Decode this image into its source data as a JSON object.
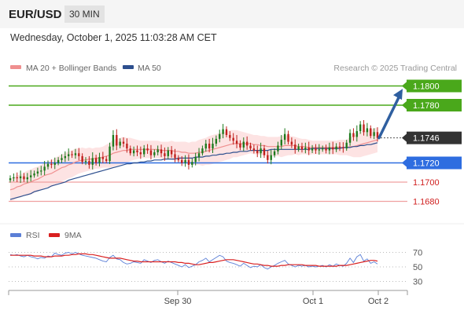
{
  "header": {
    "symbol": "EUR/USD",
    "timeframe": "30 MIN"
  },
  "datetime": "Wednesday, October 1, 2025 11:03:28 AM CET",
  "legend": {
    "ma20": "MA 20 + Bollinger Bands",
    "ma50": "MA 50",
    "credit": "Research © 2025 Trading Central",
    "rsi": "RSI",
    "rsi_ma": "9MA"
  },
  "colors": {
    "bull": "#1d7a1d",
    "bear": "#c0201d",
    "ma20": "#ef8f8f",
    "ma50": "#2d4f8e",
    "bollinger_fill": "#fde3e3",
    "resistance": "#4aa81b",
    "support": "#2e6de0",
    "target_support": "#f0a0a0",
    "arrow": "#2f5fa0",
    "current_price_bg": "#333333",
    "rsi": "#5b7fd6",
    "rsi_ma": "#d92020"
  },
  "chart_data": [
    {
      "type": "candlestick",
      "title": "",
      "ylim": [
        1.165,
        1.182
      ],
      "x_ticks": [
        "Sep 30",
        "Oct 1",
        "Oct 2"
      ],
      "series": [
        {
          "name": "MA 20 + Bollinger Bands"
        },
        {
          "name": "MA 50"
        }
      ],
      "levels": [
        {
          "label": "1.1800",
          "value": 1.18,
          "kind": "resistance"
        },
        {
          "label": "1.1780",
          "value": 1.178,
          "kind": "resistance"
        },
        {
          "label": "1.1746",
          "value": 1.1746,
          "kind": "current"
        },
        {
          "label": "1.1720",
          "value": 1.172,
          "kind": "support"
        },
        {
          "label": "1.1700",
          "value": 1.17,
          "kind": "target"
        },
        {
          "label": "1.1680",
          "value": 1.168,
          "kind": "target"
        }
      ],
      "close": [
        1.1704,
        1.1705,
        1.1704,
        1.1706,
        1.1703,
        1.1705,
        1.1707,
        1.1709,
        1.1711,
        1.1712,
        1.1716,
        1.1719,
        1.1718,
        1.172,
        1.1723,
        1.1725,
        1.1727,
        1.1729,
        1.1728,
        1.173,
        1.1727,
        1.1721,
        1.1722,
        1.1718,
        1.1725,
        1.172,
        1.1726,
        1.1724,
        1.1722,
        1.1737,
        1.1749,
        1.1738,
        1.1742,
        1.174,
        1.1735,
        1.173,
        1.1733,
        1.1731,
        1.1729,
        1.1735,
        1.1733,
        1.1728,
        1.1731,
        1.1734,
        1.173,
        1.1727,
        1.1733,
        1.1729,
        1.1725,
        1.1723,
        1.172,
        1.1723,
        1.1718,
        1.1721,
        1.1726,
        1.173,
        1.1735,
        1.174,
        1.1735,
        1.174,
        1.1745,
        1.175,
        1.1755,
        1.1749,
        1.1746,
        1.1743,
        1.174,
        1.1736,
        1.1742,
        1.1738,
        1.1735,
        1.1733,
        1.173,
        1.1735,
        1.1728,
        1.1723,
        1.1728,
        1.1732,
        1.1738,
        1.1744,
        1.175,
        1.1742,
        1.1739,
        1.1734,
        1.1737,
        1.1734,
        1.1736,
        1.1733,
        1.1735,
        1.1733,
        1.1734,
        1.1735,
        1.1733,
        1.1736,
        1.1734,
        1.1737,
        1.1736,
        1.1735,
        1.1741,
        1.1751,
        1.1747,
        1.1753,
        1.176,
        1.1752,
        1.1756,
        1.1748,
        1.1752,
        1.1746
      ],
      "ma20": [
        1.1692,
        1.1693,
        1.1695,
        1.1696,
        1.1698,
        1.1699,
        1.17,
        1.1702,
        1.1703,
        1.1705,
        1.1707,
        1.1708,
        1.1709,
        1.1711,
        1.1713,
        1.1715,
        1.1716,
        1.1718,
        1.1719,
        1.1721,
        1.1722,
        1.1723,
        1.1723,
        1.1724,
        1.1724,
        1.1725,
        1.1725,
        1.1726,
        1.1727,
        1.1728,
        1.173,
        1.1731,
        1.1732,
        1.1733,
        1.1733,
        1.1734,
        1.1734,
        1.1734,
        1.1734,
        1.1734,
        1.1734,
        1.1734,
        1.1734,
        1.1734,
        1.1733,
        1.1733,
        1.1733,
        1.1733,
        1.1732,
        1.1732,
        1.1731,
        1.1731,
        1.173,
        1.173,
        1.173,
        1.1731,
        1.1731,
        1.1732,
        1.1733,
        1.1734,
        1.1735,
        1.1736,
        1.1737,
        1.1738,
        1.1739,
        1.174,
        1.174,
        1.174,
        1.174,
        1.174,
        1.174,
        1.1739,
        1.1739,
        1.1738,
        1.1738,
        1.1737,
        1.1737,
        1.1737,
        1.1737,
        1.1737,
        1.1738,
        1.1738,
        1.1738,
        1.1738,
        1.1737,
        1.1737,
        1.1737,
        1.1736,
        1.1736,
        1.1736,
        1.1736,
        1.1736,
        1.1736,
        1.1736,
        1.1736,
        1.1736,
        1.1736,
        1.1736,
        1.1736,
        1.1737,
        1.1737,
        1.1738,
        1.1739,
        1.174,
        1.1741,
        1.1742,
        1.1743,
        1.1744
      ],
      "bollinger_width": [
        0.0012,
        0.0012,
        0.0012,
        0.0012,
        0.0012,
        0.0013,
        0.0013,
        0.0013,
        0.0013,
        0.0013,
        0.0013,
        0.0013,
        0.0014,
        0.0014,
        0.0014,
        0.0014,
        0.0014,
        0.0014,
        0.0014,
        0.0014,
        0.0013,
        0.0013,
        0.0012,
        0.0012,
        0.0011,
        0.0011,
        0.0011,
        0.0011,
        0.0012,
        0.0013,
        0.0014,
        0.0014,
        0.0014,
        0.0014,
        0.0013,
        0.0012,
        0.0011,
        0.001,
        0.0009,
        0.0009,
        0.0009,
        0.0009,
        0.0009,
        0.0009,
        0.0009,
        0.0009,
        0.0009,
        0.001,
        0.001,
        0.001,
        0.0011,
        0.0011,
        0.0011,
        0.0012,
        0.0012,
        0.0013,
        0.0014,
        0.0014,
        0.0015,
        0.0015,
        0.0015,
        0.0015,
        0.0015,
        0.0015,
        0.0015,
        0.0014,
        0.0014,
        0.0013,
        0.0012,
        0.0011,
        0.001,
        0.001,
        0.001,
        0.001,
        0.001,
        0.001,
        0.001,
        0.001,
        0.001,
        0.0011,
        0.0011,
        0.001,
        0.001,
        0.0009,
        0.0009,
        0.0008,
        0.0008,
        0.0008,
        0.0007,
        0.0007,
        0.0007,
        0.0007,
        0.0007,
        0.0007,
        0.0007,
        0.0007,
        0.0008,
        0.0008,
        0.0008,
        0.001,
        0.0011,
        0.0012,
        0.0013,
        0.0013,
        0.0013,
        0.0013,
        0.0013,
        0.0013
      ],
      "ma50": [
        1.1682,
        1.1683,
        1.1684,
        1.1685,
        1.1686,
        1.1687,
        1.1688,
        1.169,
        1.1691,
        1.1692,
        1.1693,
        1.1694,
        1.1696,
        1.1697,
        1.1698,
        1.1699,
        1.17,
        1.1702,
        1.1703,
        1.1704,
        1.1705,
        1.1706,
        1.1707,
        1.1708,
        1.1709,
        1.171,
        1.1711,
        1.1712,
        1.1713,
        1.1714,
        1.1715,
        1.1716,
        1.1717,
        1.1718,
        1.1719,
        1.1719,
        1.172,
        1.172,
        1.1721,
        1.1721,
        1.1722,
        1.1722,
        1.1723,
        1.1723,
        1.1723,
        1.1724,
        1.1724,
        1.1724,
        1.1724,
        1.1725,
        1.1725,
        1.1725,
        1.1725,
        1.1725,
        1.1726,
        1.1726,
        1.1726,
        1.1727,
        1.1727,
        1.1728,
        1.1728,
        1.1729,
        1.1729,
        1.173,
        1.173,
        1.1731,
        1.1731,
        1.1732,
        1.1732,
        1.1732,
        1.1733,
        1.1733,
        1.1733,
        1.1733,
        1.1733,
        1.1733,
        1.1734,
        1.1734,
        1.1734,
        1.1734,
        1.1734,
        1.1734,
        1.1734,
        1.1734,
        1.1734,
        1.1734,
        1.1734,
        1.1734,
        1.1735,
        1.1735,
        1.1735,
        1.1735,
        1.1735,
        1.1735,
        1.1735,
        1.1735,
        1.1735,
        1.1736,
        1.1736,
        1.1736,
        1.1737,
        1.1737,
        1.1738,
        1.1738,
        1.1739,
        1.1739,
        1.174,
        1.1741
      ]
    },
    {
      "type": "line",
      "title": "",
      "ylim": [
        25,
        75
      ],
      "y_ticks": [
        70,
        50,
        30
      ],
      "series": [
        {
          "name": "RSI",
          "values": [
            67,
            66,
            67,
            65,
            64,
            66,
            64,
            63,
            61,
            63,
            62,
            65,
            64,
            69,
            67,
            66,
            69,
            70,
            68,
            70,
            68,
            66,
            65,
            64,
            63,
            62,
            60,
            58,
            57,
            63,
            66,
            61,
            60,
            56,
            54,
            55,
            57,
            56,
            55,
            60,
            58,
            56,
            59,
            60,
            57,
            55,
            58,
            56,
            54,
            52,
            50,
            53,
            49,
            51,
            53,
            57,
            59,
            62,
            57,
            60,
            63,
            66,
            64,
            58,
            56,
            55,
            53,
            51,
            55,
            52,
            49,
            51,
            50,
            53,
            49,
            47,
            50,
            52,
            55,
            57,
            59,
            54,
            52,
            50,
            52,
            51,
            52,
            50,
            51,
            50,
            51,
            52,
            50,
            53,
            51,
            54,
            52,
            51,
            55,
            62,
            56,
            64,
            67,
            58,
            61,
            55,
            57,
            54
          ]
        },
        {
          "name": "9MA",
          "values": [
            66,
            66,
            66,
            66,
            66,
            66,
            66,
            65,
            65,
            65,
            64,
            64,
            64,
            65,
            65,
            65,
            66,
            66,
            67,
            67,
            68,
            68,
            68,
            67,
            67,
            66,
            65,
            64,
            63,
            62,
            62,
            62,
            62,
            61,
            60,
            59,
            58,
            58,
            57,
            57,
            57,
            57,
            57,
            57,
            57,
            57,
            57,
            57,
            57,
            56,
            56,
            55,
            55,
            54,
            53,
            53,
            54,
            55,
            56,
            56,
            57,
            58,
            59,
            60,
            60,
            60,
            59,
            58,
            57,
            56,
            55,
            54,
            54,
            53,
            52,
            52,
            51,
            51,
            51,
            52,
            52,
            53,
            53,
            53,
            53,
            53,
            52,
            52,
            52,
            52,
            51,
            51,
            51,
            51,
            51,
            51,
            52,
            52,
            52,
            53,
            54,
            55,
            56,
            57,
            58,
            59,
            59,
            58
          ]
        }
      ]
    }
  ]
}
